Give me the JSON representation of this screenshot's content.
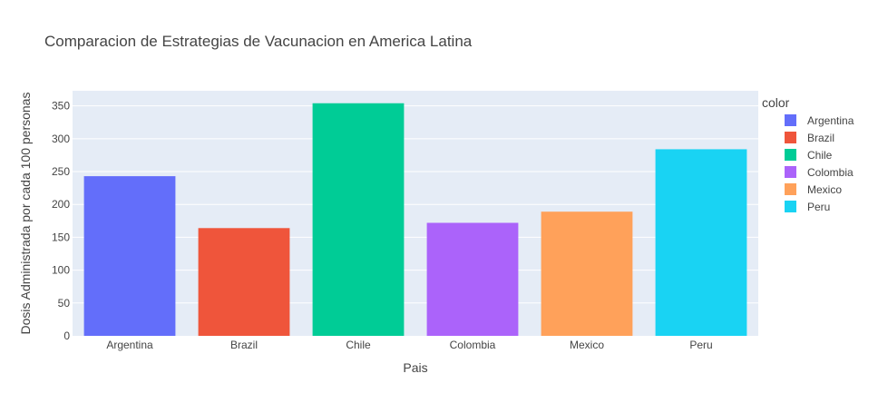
{
  "chart_data": {
    "type": "bar",
    "title": "Comparacion de Estrategias de Vacunacion en America Latina",
    "xlabel": "Pais",
    "ylabel": "Dosis Administrada por cada 100 personas",
    "categories": [
      "Argentina",
      "Brazil",
      "Chile",
      "Colombia",
      "Mexico",
      "Peru"
    ],
    "values": [
      243,
      164,
      354,
      172,
      189,
      284
    ],
    "colors": [
      "#636efa",
      "#EF553B",
      "#00cc96",
      "#ab63fa",
      "#FFA15A",
      "#19d3f3"
    ],
    "ylim": [
      0,
      373
    ],
    "yticks": [
      0,
      50,
      100,
      150,
      200,
      250,
      300,
      350
    ],
    "grid": true,
    "legend": {
      "title": "color",
      "placement": "right",
      "entries": [
        "Argentina",
        "Brazil",
        "Chile",
        "Colombia",
        "Mexico",
        "Peru"
      ]
    },
    "plot_background": "#e5ecf6"
  }
}
